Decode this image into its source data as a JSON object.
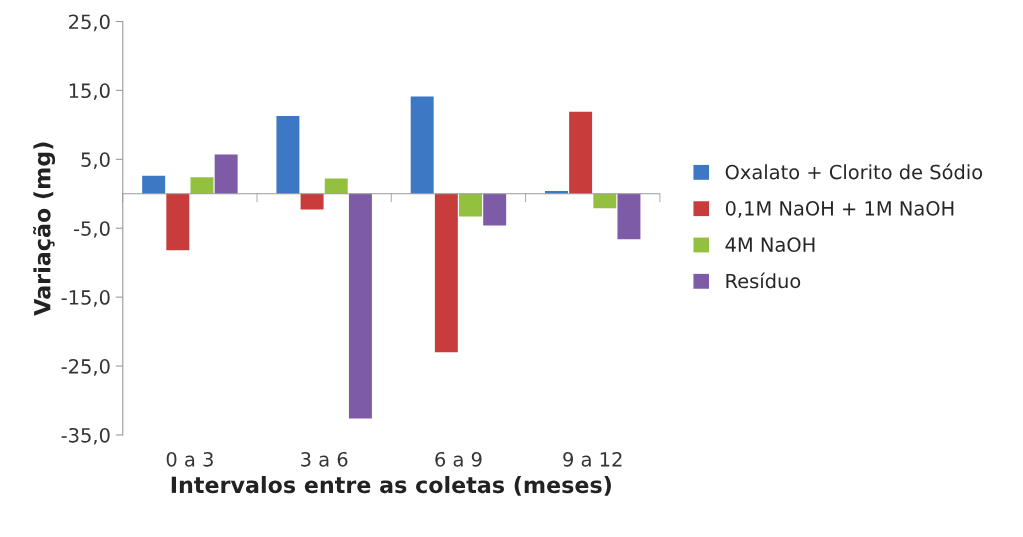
{
  "chart_data": {
    "type": "bar",
    "xlabel": "Intervalos entre as coletas (meses)",
    "ylabel": "Variação (mg)",
    "categories": [
      "0 a 3",
      "3 a 6",
      "6 a 9",
      "9 a 12"
    ],
    "series": [
      {
        "name": "Oxalato + Clorito de Sódio",
        "color": "#3c78c3",
        "values": [
          2.6,
          11.3,
          14.1,
          0.4
        ]
      },
      {
        "name": "0,1M NaOH + 1M NaOH",
        "color": "#c83c3c",
        "values": [
          -8.2,
          -2.3,
          -23.0,
          11.9
        ]
      },
      {
        "name": "4M NaOH",
        "color": "#94c040",
        "values": [
          2.4,
          2.2,
          -3.3,
          -2.1
        ]
      },
      {
        "name": "Resíduo",
        "color": "#7d5ba6",
        "values": [
          5.7,
          -32.6,
          -4.6,
          -6.6
        ]
      }
    ],
    "ylim": [
      -35,
      25
    ],
    "yticks": [
      {
        "value": -35,
        "label": "-35,0"
      },
      {
        "value": -25,
        "label": "-25,0"
      },
      {
        "value": -15,
        "label": "-15,0"
      },
      {
        "value": -5,
        "label": "-5,0"
      },
      {
        "value": 5,
        "label": "5,0"
      },
      {
        "value": 15,
        "label": "15,0"
      },
      {
        "value": 25,
        "label": "25,0"
      }
    ],
    "grid": false,
    "legend": "right"
  }
}
